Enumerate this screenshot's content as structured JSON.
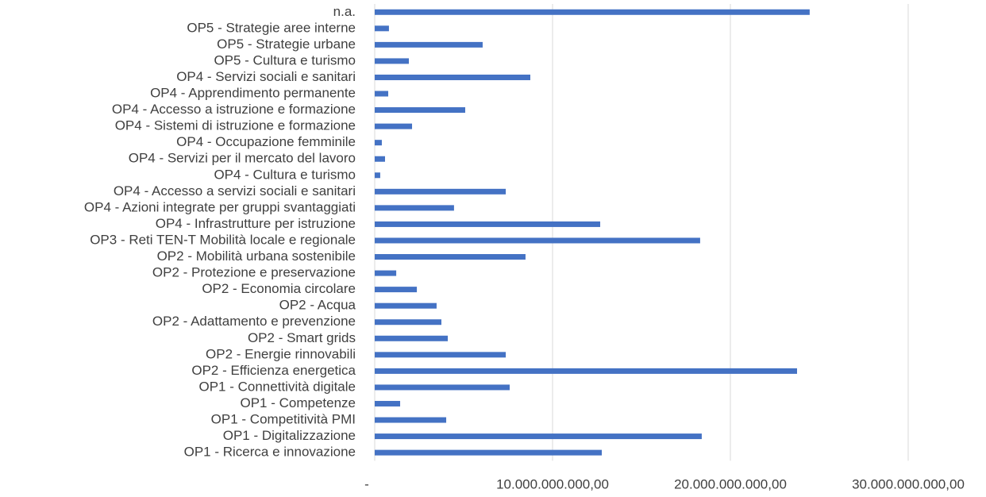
{
  "chart_data": {
    "type": "bar",
    "orientation": "horizontal",
    "categories": [
      "n.a.",
      "OP5 - Strategie aree interne",
      "OP5 - Strategie urbane",
      "OP5 - Cultura e turismo",
      "OP4 - Servizi sociali e sanitari",
      "OP4 - Apprendimento permanente",
      "OP4 - Accesso a istruzione e formazione",
      "OP4 - Sistemi di istruzione e formazione",
      "OP4 - Occupazione femminile",
      "OP4 - Servizi per il mercato del lavoro",
      "OP4 - Cultura e turismo",
      "OP4 - Accesso a servizi sociali e sanitari",
      "OP4 - Azioni integrate per gruppi svantaggiati",
      "OP4 - Infrastrutture per istruzione",
      "OP3 - Reti TEN-T Mobilità locale e regionale",
      "OP2 - Mobilità urbana sostenibile",
      "OP2 - Protezione e preservazione",
      "OP2 - Economia circolare",
      "OP2 - Acqua",
      "OP2 - Adattamento e prevenzione",
      "OP2 - Smart grids",
      "OP2 - Energie rinnovabili",
      "OP2 - Efficienza energetica",
      "OP1 - Connettività digitale",
      "OP1 - Competenze",
      "OP1 - Competitività PMI",
      "OP1 - Digitalizzazione",
      "OP1 - Ricerca e innovazione"
    ],
    "values": [
      24460000000,
      800000000,
      6070000000,
      1920000000,
      8750000000,
      760000000,
      5090000000,
      2100000000,
      400000000,
      580000000,
      310000000,
      7370000000,
      4460000000,
      12680000000,
      18300000000,
      8480000000,
      1210000000,
      2370000000,
      3480000000,
      3750000000,
      4110000000,
      7370000000,
      23750000000,
      7590000000,
      1430000000,
      4020000000,
      18390000000,
      12770000000
    ],
    "color": "#4472c4",
    "xlim": [
      0,
      30000000000
    ],
    "xticks": [
      {
        "value": 0,
        "label": "-"
      },
      {
        "value": 10000000000,
        "label": "10.000.000.000,00"
      },
      {
        "value": 20000000000,
        "label": "20.000.000.000,00"
      },
      {
        "value": 30000000000,
        "label": "30.000.000.000,00"
      }
    ],
    "grid": true
  }
}
